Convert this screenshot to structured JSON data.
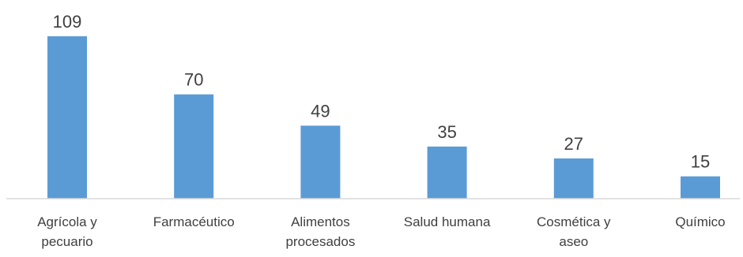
{
  "chart_data": {
    "type": "bar",
    "categories": [
      [
        "Agrícola y",
        "pecuario"
      ],
      [
        "Farmacéutico"
      ],
      [
        "Alimentos",
        "procesados"
      ],
      [
        "Salud humana"
      ],
      [
        "Cosmética y",
        "aseo"
      ],
      [
        "Químico"
      ]
    ],
    "values": [
      109,
      70,
      49,
      35,
      27,
      15
    ],
    "value_labels": [
      "109",
      "70",
      "49",
      "35",
      "27",
      "15"
    ],
    "title": "",
    "xlabel": "",
    "ylabel": "",
    "ylim": [
      0,
      109
    ],
    "grid": false,
    "legend": "none",
    "colors": {
      "bar": "#5b9bd5",
      "axis": "#d9d9d9",
      "text": "#404040"
    }
  }
}
